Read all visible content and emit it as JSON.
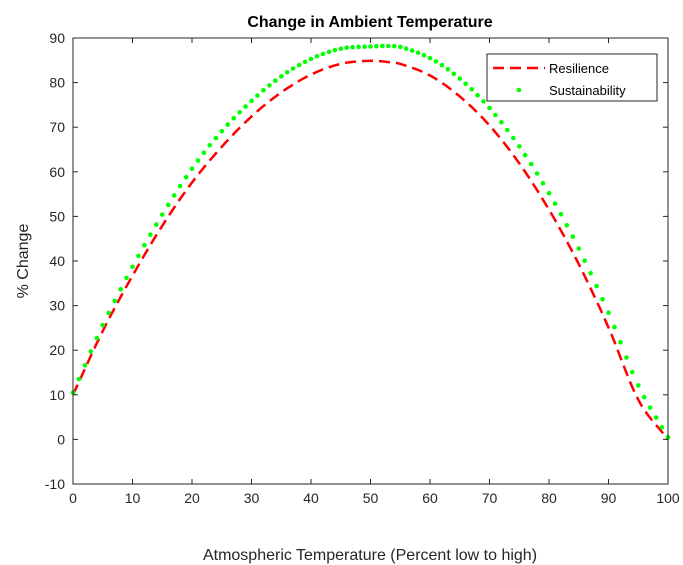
{
  "chart_data": {
    "type": "line",
    "title": "Change in Ambient Temperature",
    "xlabel": "Atmospheric Temperature (Percent low to high)",
    "ylabel": "% Change",
    "xlim": [
      0,
      100
    ],
    "ylim": [
      -10,
      90
    ],
    "xticks": [
      0,
      10,
      20,
      30,
      40,
      50,
      60,
      70,
      80,
      90,
      100
    ],
    "yticks": [
      -10,
      0,
      10,
      20,
      30,
      40,
      50,
      60,
      70,
      80,
      90
    ],
    "grid": false,
    "legend_position": "top-right",
    "x": [
      0,
      5,
      10,
      15,
      20,
      25,
      30,
      35,
      40,
      45,
      50,
      53,
      55,
      60,
      65,
      70,
      75,
      80,
      85,
      90,
      95,
      100
    ],
    "series": [
      {
        "name": "Resilience",
        "style": "dashed",
        "color": "#ff0000",
        "values": [
          10,
          24.3,
          36.7,
          47.9,
          57.6,
          65.6,
          72.4,
          77.8,
          81.8,
          84.2,
          84.9,
          84.6,
          84.2,
          81.6,
          76.9,
          70.4,
          61.9,
          51.5,
          39.3,
          25.1,
          8.9,
          0
        ]
      },
      {
        "name": "Sustainability",
        "style": "dotted",
        "color": "#00ff00",
        "values": [
          10.5,
          25.6,
          38.7,
          50.4,
          60.7,
          69.1,
          75.9,
          81.4,
          85.3,
          87.6,
          88.1,
          88.2,
          88.0,
          85.5,
          80.9,
          74.3,
          65.7,
          55.2,
          42.8,
          28.4,
          12.1,
          0.5
        ]
      }
    ]
  }
}
